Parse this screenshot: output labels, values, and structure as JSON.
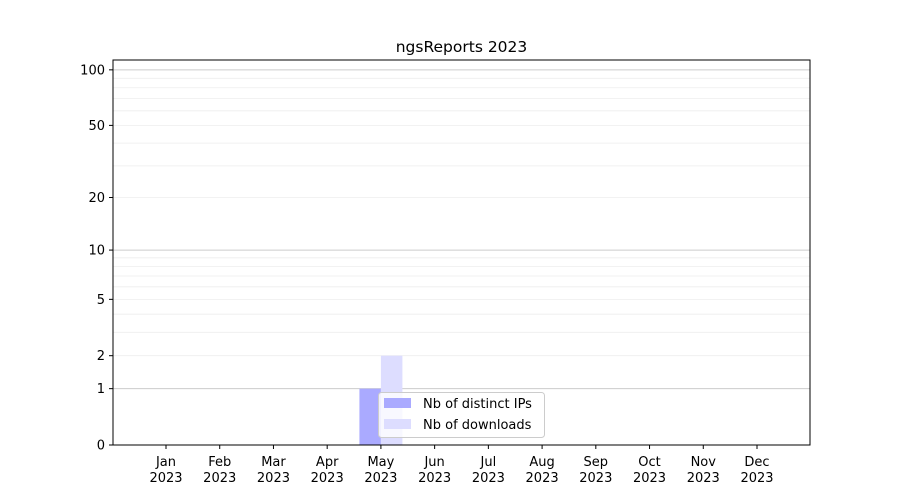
{
  "chart_data": {
    "type": "bar",
    "title": "ngsReports 2023",
    "xlabel": "",
    "ylabel": "",
    "y_scale": "log(1+x)",
    "ylim": [
      0,
      113
    ],
    "grid": "horizontal major and minor",
    "legend_placement": "lower-center",
    "categories": [
      [
        "Jan",
        "2023"
      ],
      [
        "Feb",
        "2023"
      ],
      [
        "Mar",
        "2023"
      ],
      [
        "Apr",
        "2023"
      ],
      [
        "May",
        "2023"
      ],
      [
        "Jun",
        "2023"
      ],
      [
        "Jul",
        "2023"
      ],
      [
        "Aug",
        "2023"
      ],
      [
        "Sep",
        "2023"
      ],
      [
        "Oct",
        "2023"
      ],
      [
        "Nov",
        "2023"
      ],
      [
        "Dec",
        "2023"
      ]
    ],
    "y_ticks": [
      0,
      1,
      2,
      5,
      10,
      20,
      50,
      100
    ],
    "series": [
      {
        "name": "Nb of distinct IPs",
        "color": "#aaaaff",
        "values": [
          0,
          0,
          0,
          0,
          1,
          0,
          0,
          0,
          0,
          0,
          0,
          0
        ]
      },
      {
        "name": "Nb of downloads",
        "color": "#ddddff",
        "values": [
          0,
          0,
          0,
          0,
          2,
          0,
          0,
          0,
          0,
          0,
          0,
          0
        ]
      }
    ]
  }
}
